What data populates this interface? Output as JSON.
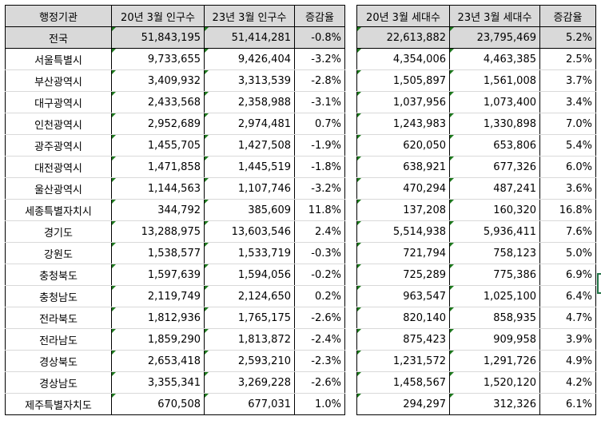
{
  "population": {
    "headers": [
      "행정기관",
      "20년 3월 인구수",
      "23년 3월 인구수",
      "증감율"
    ],
    "rows": [
      [
        "전국",
        "51,843,195",
        "51,414,281",
        "-0.8%"
      ],
      [
        "서울특별시",
        "9,733,655",
        "9,426,404",
        "-3.2%"
      ],
      [
        "부산광역시",
        "3,409,932",
        "3,313,539",
        "-2.8%"
      ],
      [
        "대구광역시",
        "2,433,568",
        "2,358,988",
        "-3.1%"
      ],
      [
        "인천광역시",
        "2,952,689",
        "2,974,481",
        "0.7%"
      ],
      [
        "광주광역시",
        "1,455,705",
        "1,427,508",
        "-1.9%"
      ],
      [
        "대전광역시",
        "1,471,858",
        "1,445,519",
        "-1.8%"
      ],
      [
        "울산광역시",
        "1,144,563",
        "1,107,746",
        "-3.2%"
      ],
      [
        "세종특별자치시",
        "344,792",
        "385,609",
        "11.8%"
      ],
      [
        "경기도",
        "13,288,975",
        "13,603,546",
        "2.4%"
      ],
      [
        "강원도",
        "1,538,577",
        "1,533,719",
        "-0.3%"
      ],
      [
        "충청북도",
        "1,597,639",
        "1,594,056",
        "-0.2%"
      ],
      [
        "충청남도",
        "2,119,749",
        "2,124,650",
        "0.2%"
      ],
      [
        "전라북도",
        "1,812,936",
        "1,765,175",
        "-2.6%"
      ],
      [
        "전라남도",
        "1,859,290",
        "1,813,872",
        "-2.4%"
      ],
      [
        "경상북도",
        "2,653,418",
        "2,593,210",
        "-2.3%"
      ],
      [
        "경상남도",
        "3,355,341",
        "3,269,228",
        "-2.6%"
      ],
      [
        "제주특별자치도",
        "670,508",
        "677,031",
        "1.0%"
      ]
    ]
  },
  "households": {
    "headers": [
      "20년 3월 세대수",
      "23년 3월 세대수",
      "증감율"
    ],
    "rows": [
      [
        "22,613,882",
        "23,795,469",
        "5.2%"
      ],
      [
        "4,354,006",
        "4,463,385",
        "2.5%"
      ],
      [
        "1,505,897",
        "1,561,008",
        "3.7%"
      ],
      [
        "1,037,956",
        "1,073,400",
        "3.4%"
      ],
      [
        "1,243,983",
        "1,330,898",
        "7.0%"
      ],
      [
        "620,050",
        "653,806",
        "5.4%"
      ],
      [
        "638,921",
        "677,326",
        "6.0%"
      ],
      [
        "470,294",
        "487,241",
        "3.6%"
      ],
      [
        "137,208",
        "160,320",
        "16.8%"
      ],
      [
        "5,514,938",
        "5,936,411",
        "7.6%"
      ],
      [
        "721,794",
        "758,123",
        "5.0%"
      ],
      [
        "725,289",
        "775,386",
        "6.9%"
      ],
      [
        "963,547",
        "1,025,100",
        "6.4%"
      ],
      [
        "820,140",
        "858,935",
        "4.7%"
      ],
      [
        "875,423",
        "909,958",
        "3.9%"
      ],
      [
        "1,231,572",
        "1,291,726",
        "4.9%"
      ],
      [
        "1,458,567",
        "1,520,120",
        "4.2%"
      ],
      [
        "294,297",
        "312,326",
        "6.1%"
      ]
    ]
  },
  "colors": {
    "header_bg": "#d9d9d9",
    "error_triangle": "#1e7a1e",
    "selection": "#217346"
  }
}
